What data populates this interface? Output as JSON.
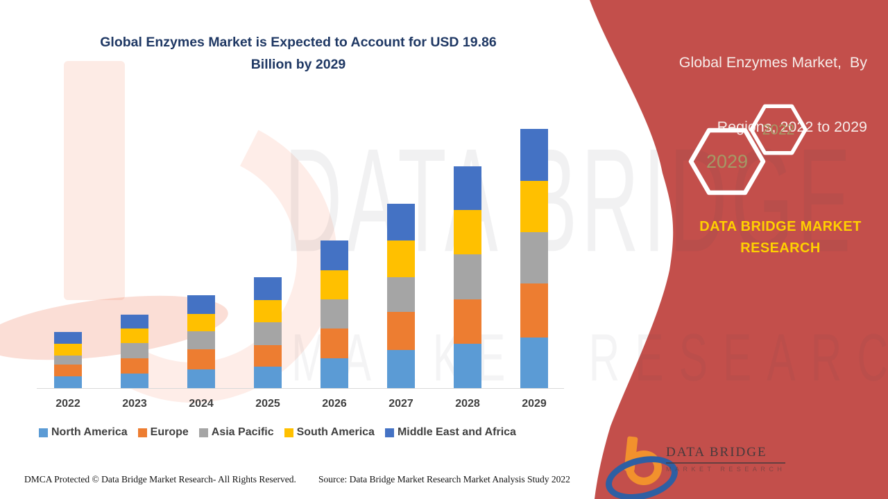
{
  "header": {
    "title_line1": "Global Enzymes Market is Expected to Account for USD 19.86",
    "title_line2": "Billion by 2029",
    "title_color": "#1F3864"
  },
  "panel": {
    "bg_color": "#C34F4B",
    "title_line1": "Global Enzymes Market,  By",
    "title_line2": "Regions, 2022 to 2029",
    "title_color": "#F6ECE9",
    "hexagons": [
      {
        "label": "2029"
      },
      {
        "label": "2022"
      }
    ],
    "hexagon_text_color": "#A49A66",
    "brand_text_line1": "DATA BRIDGE MARKET",
    "brand_text_line2": "RESEARCH",
    "brand_color": "#FFD000",
    "logo": {
      "name_top": "DATA BRIDGE",
      "name_bottom": "MARKET RESEARCH"
    }
  },
  "watermark": {
    "text_top": "DATA BRIDGE",
    "text_bottom": "MARKET RESEARCH"
  },
  "chart_data": {
    "type": "bar",
    "stacked": true,
    "title": "Global Enzymes Market is Expected to Account for USD 19.86 Billion by 2029",
    "unit": "USD Billion",
    "categories": [
      "2022",
      "2023",
      "2024",
      "2025",
      "2026",
      "2027",
      "2028",
      "2029"
    ],
    "series": [
      {
        "name": "North America",
        "color": "#5B9BD5",
        "values": [
          0.9,
          1.12,
          1.43,
          1.65,
          2.28,
          2.92,
          3.4,
          3.88
        ]
      },
      {
        "name": "Europe",
        "color": "#ED7D31",
        "values": [
          0.9,
          1.17,
          1.54,
          1.65,
          2.28,
          2.92,
          3.4,
          4.14
        ]
      },
      {
        "name": "Asia Pacific",
        "color": "#A5A5A5",
        "values": [
          0.69,
          1.17,
          1.38,
          1.75,
          2.23,
          2.66,
          3.45,
          3.93
        ]
      },
      {
        "name": "South America",
        "color": "#FFC000",
        "values": [
          0.9,
          1.12,
          1.33,
          1.7,
          2.23,
          2.81,
          3.4,
          3.93
        ]
      },
      {
        "name": "Middle East and Africa",
        "color": "#4472C4",
        "values": [
          0.9,
          1.06,
          1.43,
          1.75,
          2.28,
          2.81,
          3.35,
          3.98
        ]
      }
    ],
    "totals_by_year": [
      4.29,
      5.64,
      7.11,
      8.5,
      11.3,
      14.12,
      17.0,
      19.86
    ],
    "highlighted_value": "USD 19.86 Billion by 2029",
    "xlabel": "",
    "ylabel": "",
    "y_axis_visible": false,
    "gridlines": false,
    "legend_position": "bottom"
  },
  "footer": {
    "left": "DMCA Protected © Data Bridge Market Research- All Rights Reserved.",
    "right": "Source: Data Bridge Market Research Market Analysis Study 2022"
  }
}
